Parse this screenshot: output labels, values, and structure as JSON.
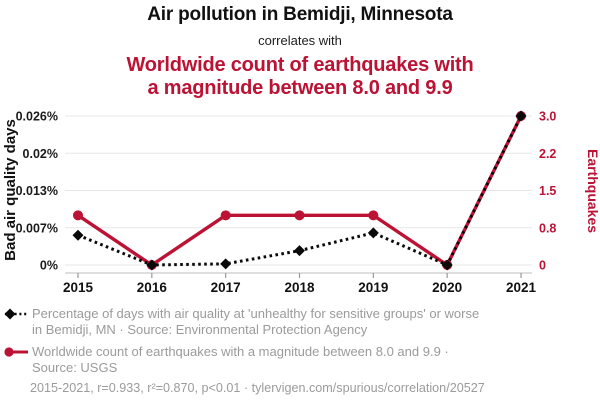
{
  "colors": {
    "red": "#bc1335",
    "ink": "#111111",
    "gray": "#9b9b9b",
    "grid": "#e7e7e7",
    "axis_line": "#c9c9c9",
    "black_series": "#0a0a0a"
  },
  "chart_data": {
    "type": "line",
    "title": "Air pollution in Bemidji, Minnesota",
    "connector": "correlates with",
    "subtitle_lines": [
      "Worldwide count of earthquakes with",
      "a magnitude between 8.0 and 9.9"
    ],
    "x": [
      "2015",
      "2016",
      "2017",
      "2018",
      "2019",
      "2020",
      "2021"
    ],
    "series": [
      {
        "name": "Percentage of days with air quality at 'unhealthy for sensitive groups' or worse in Bemidji, MN",
        "axis": "left",
        "style": "black-dotted-diamond",
        "values": [
          0.0052,
          0,
          0.0002,
          0.0025,
          0.0056,
          0,
          0.026
        ]
      },
      {
        "name": "Worldwide count of earthquakes with a magnitude between 8.0 and 9.9",
        "axis": "right",
        "style": "red-solid-circle",
        "values": [
          1,
          0,
          1,
          1,
          1,
          0,
          3
        ]
      }
    ],
    "left_axis": {
      "label": "Bad air quality days",
      "ticks": [
        "0%",
        "0.007%",
        "0.013%",
        "0.02%",
        "0.026%"
      ],
      "range": [
        0,
        0.026
      ]
    },
    "right_axis": {
      "label": "Earthquakes",
      "ticks": [
        "0",
        "0.8",
        "1.5",
        "2.2",
        "3.0"
      ],
      "range": [
        0,
        3
      ]
    },
    "grid": true,
    "legend_position": "bottom"
  },
  "legend": {
    "items": [
      {
        "marker": "black-diamond-dotted",
        "label": "Percentage of days with air quality at 'unhealthy for sensitive groups' or worse in Bemidji, MN · Source: Environmental Protection Agency"
      },
      {
        "marker": "red-circle-solid",
        "label": "Worldwide count of earthquakes with a magnitude between 8.0 and 9.9 · Source: USGS"
      }
    ]
  },
  "footer": {
    "text": "2015-2021, r=0.933, r²=0.870, p<0.01 · tylervigen.com/spurious/correlation/20527"
  }
}
